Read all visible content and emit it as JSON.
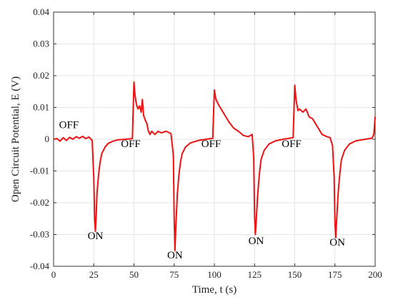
{
  "chart_data": {
    "type": "line",
    "xlabel": "Time, t (s)",
    "ylabel": "Open Circuit Potential, E (V)",
    "xlim": [
      0,
      200
    ],
    "ylim": [
      -0.04,
      0.04
    ],
    "x_ticks": [
      "0",
      "25",
      "50",
      "75",
      "100",
      "125",
      "150",
      "175",
      "200"
    ],
    "y_ticks": [
      "0.04",
      "0.03",
      "0.02",
      "0.01",
      "0",
      "-0.01",
      "-0.02",
      "-0.03",
      "-0.04"
    ],
    "grid": true,
    "series": [
      {
        "color": "#ee1111",
        "points": [
          [
            0,
            0.0
          ],
          [
            2,
            0.0002
          ],
          [
            4,
            -0.0006
          ],
          [
            6,
            0.0005
          ],
          [
            8,
            -0.0004
          ],
          [
            10,
            0.0006
          ],
          [
            12,
            0.0
          ],
          [
            14,
            0.0008
          ],
          [
            16,
            0.0003
          ],
          [
            18,
            0.0009
          ],
          [
            20,
            0.0002
          ],
          [
            22,
            0.0007
          ],
          [
            24,
            -0.0004
          ],
          [
            25,
            -0.012
          ],
          [
            25.5,
            -0.025
          ],
          [
            26,
            -0.029
          ],
          [
            26.5,
            -0.024
          ],
          [
            27,
            -0.017
          ],
          [
            28,
            -0.011
          ],
          [
            29,
            -0.007
          ],
          [
            30,
            -0.0045
          ],
          [
            32,
            -0.0025
          ],
          [
            34,
            -0.0013
          ],
          [
            37,
            -0.0006
          ],
          [
            40,
            -0.0002
          ],
          [
            45,
            0.0
          ],
          [
            49,
            0.0002
          ],
          [
            50,
            0.018
          ],
          [
            50.6,
            0.014
          ],
          [
            51.5,
            0.011
          ],
          [
            52.5,
            0.0095
          ],
          [
            53.5,
            0.0105
          ],
          [
            54.5,
            0.0085
          ],
          [
            55.2,
            0.0125
          ],
          [
            56,
            0.0075
          ],
          [
            57,
            0.006
          ],
          [
            58,
            0.005
          ],
          [
            59,
            0.0025
          ],
          [
            60,
            0.0015
          ],
          [
            61,
            0.0025
          ],
          [
            63,
            0.0015
          ],
          [
            65,
            0.0025
          ],
          [
            67,
            0.002
          ],
          [
            70,
            0.0025
          ],
          [
            73,
            0.0018
          ],
          [
            74.5,
            -0.005
          ],
          [
            75,
            -0.025
          ],
          [
            75.5,
            -0.035
          ],
          [
            76,
            -0.028
          ],
          [
            77,
            -0.017
          ],
          [
            78,
            -0.011
          ],
          [
            79,
            -0.007
          ],
          [
            80,
            -0.0045
          ],
          [
            82,
            -0.0025
          ],
          [
            85,
            -0.0012
          ],
          [
            90,
            -0.0004
          ],
          [
            95,
            0.0
          ],
          [
            99,
            0.0003
          ],
          [
            100,
            0.0155
          ],
          [
            101,
            0.0125
          ],
          [
            103,
            0.0105
          ],
          [
            106,
            0.008
          ],
          [
            109,
            0.0055
          ],
          [
            112,
            0.0035
          ],
          [
            115,
            0.0025
          ],
          [
            118,
            0.0012
          ],
          [
            121,
            0.0008
          ],
          [
            123.5,
            0.0015
          ],
          [
            124.5,
            -0.006
          ],
          [
            125,
            -0.024
          ],
          [
            125.5,
            -0.03
          ],
          [
            126,
            -0.026
          ],
          [
            127,
            -0.017
          ],
          [
            128,
            -0.011
          ],
          [
            129,
            -0.0065
          ],
          [
            131,
            -0.0035
          ],
          [
            134,
            -0.0015
          ],
          [
            138,
            -0.0005
          ],
          [
            143,
            0.0
          ],
          [
            149,
            0.0005
          ],
          [
            150,
            0.017
          ],
          [
            150.8,
            0.0125
          ],
          [
            152,
            0.009
          ],
          [
            153,
            0.0095
          ],
          [
            155,
            0.0085
          ],
          [
            157,
            0.0095
          ],
          [
            159,
            0.007
          ],
          [
            161,
            0.0065
          ],
          [
            164,
            0.004
          ],
          [
            167,
            0.0015
          ],
          [
            170,
            0.0008
          ],
          [
            172,
            0.0005
          ],
          [
            173.5,
            -0.002
          ],
          [
            174.5,
            -0.012
          ],
          [
            175,
            -0.026
          ],
          [
            175.5,
            -0.031
          ],
          [
            176,
            -0.026
          ],
          [
            177,
            -0.017
          ],
          [
            178,
            -0.011
          ],
          [
            179,
            -0.0065
          ],
          [
            181,
            -0.0035
          ],
          [
            184,
            -0.0015
          ],
          [
            188,
            -0.0005
          ],
          [
            194,
            0.0
          ],
          [
            198,
            0.0003
          ],
          [
            199.2,
            0.0015
          ],
          [
            200,
            0.007
          ]
        ]
      }
    ],
    "annotations": [
      {
        "text": "OFF",
        "x": 9.5,
        "y": 0.0035
      },
      {
        "text": "ON",
        "x": 26,
        "y": -0.0315
      },
      {
        "text": "OFF",
        "x": 48,
        "y": -0.0025
      },
      {
        "text": "ON",
        "x": 75.5,
        "y": -0.0375
      },
      {
        "text": "OFF",
        "x": 98,
        "y": -0.0025
      },
      {
        "text": "ON",
        "x": 126,
        "y": -0.033
      },
      {
        "text": "OFF",
        "x": 148,
        "y": -0.0025
      },
      {
        "text": "ON",
        "x": 176.5,
        "y": -0.0335
      }
    ]
  }
}
